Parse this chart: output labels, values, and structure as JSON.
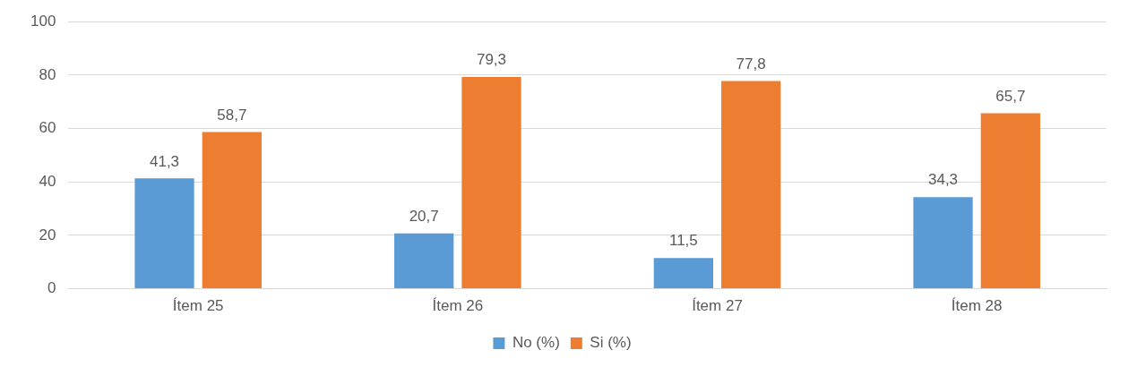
{
  "chart_data": {
    "type": "bar",
    "categories": [
      "Ítem 25",
      "Ítem 26",
      "Ítem 27",
      "Ítem 28"
    ],
    "series": [
      {
        "name": "No (%)",
        "color": "#5b9bd5",
        "values": [
          41.3,
          20.7,
          11.5,
          34.3
        ],
        "value_labels": [
          "41,3",
          "20,7",
          "11,5",
          "34,3"
        ]
      },
      {
        "name": "Si (%)",
        "color": "#ed7d31",
        "values": [
          58.7,
          79.3,
          77.8,
          65.7
        ],
        "value_labels": [
          "58,7",
          "79,3",
          "77,8",
          "65,7"
        ]
      }
    ],
    "ylim": [
      0,
      100
    ],
    "yticks": [
      0,
      20,
      40,
      60,
      80,
      100
    ],
    "grid": "y",
    "legend": "bottom"
  }
}
